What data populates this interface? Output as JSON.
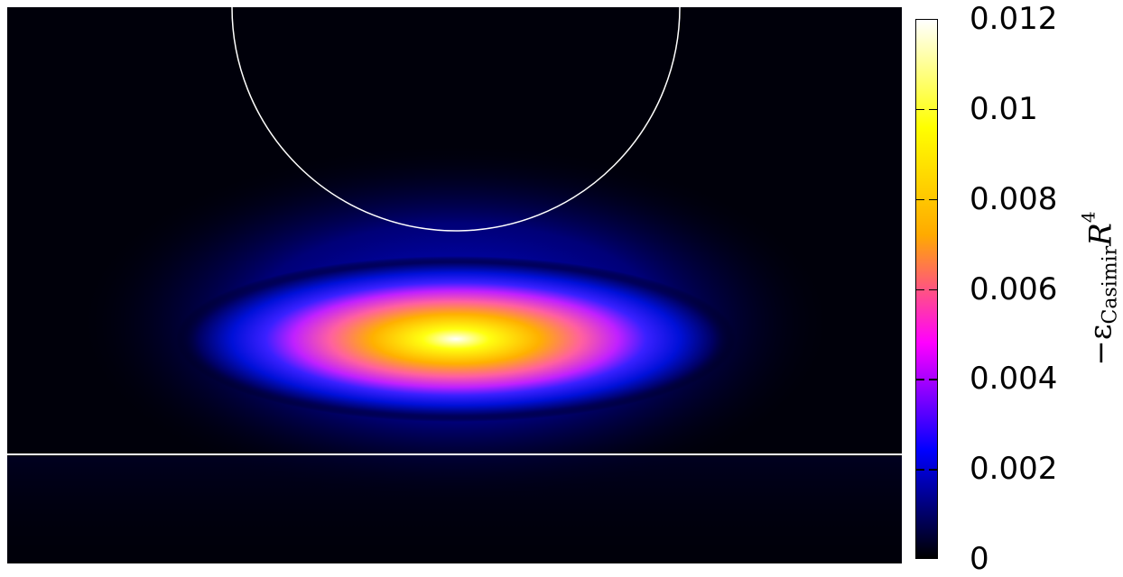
{
  "chart_data": {
    "type": "heatmap",
    "title": "",
    "colormap": [
      "#000000",
      "#0000ff",
      "#ff00ff",
      "#ffaa00",
      "#ffff00",
      "#ffffff"
    ],
    "colorbar": {
      "min": 0,
      "max": 0.012,
      "ticks": [
        "0",
        "0.002",
        "0.004",
        "0.006",
        "0.008",
        "0.01",
        "0.012"
      ],
      "label_parts": {
        "prefix": "−ε",
        "subscript": "Casimir",
        "variable": "R",
        "superscript": "4"
      }
    },
    "peak_value": 0.0118,
    "overlays": [
      {
        "shape": "circle",
        "description": "sphere boundary (half-visible at top)"
      },
      {
        "shape": "line",
        "description": "plate boundary (horizontal)"
      }
    ]
  }
}
